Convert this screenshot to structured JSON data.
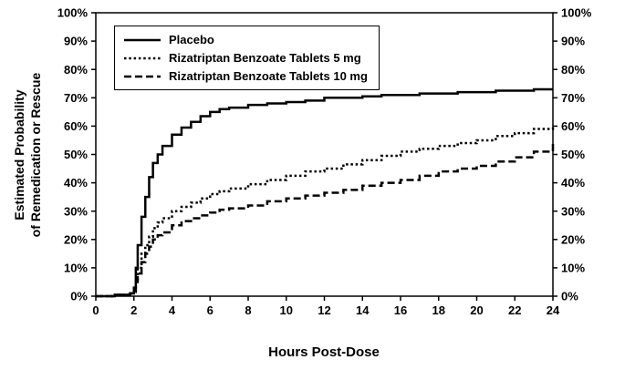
{
  "chart_data": {
    "type": "line",
    "title": "",
    "xlabel": "Hours Post-Dose",
    "ylabel": "Estimated Probability\nof Remedication or Rescue",
    "xlim": [
      0,
      24
    ],
    "ylim": [
      0,
      100
    ],
    "x_ticks": [
      0,
      2,
      4,
      6,
      8,
      10,
      12,
      14,
      16,
      18,
      20,
      22,
      24
    ],
    "y_ticks": [
      0,
      10,
      20,
      30,
      40,
      50,
      60,
      70,
      80,
      90,
      100
    ],
    "y_tick_suffix": "%",
    "y_axis_labels_both_sides": true,
    "grid": false,
    "legend_position": "top-left-inside",
    "interpolation": "step-after",
    "line_color": "#000000",
    "background_color": "#ffffff",
    "x": [
      0,
      1.0,
      1.8,
      2.0,
      2.1,
      2.2,
      2.4,
      2.6,
      2.8,
      3.0,
      3.25,
      3.5,
      4.0,
      4.5,
      5.0,
      5.5,
      6.0,
      6.5,
      7.0,
      8.0,
      9.0,
      10.0,
      11.0,
      12.0,
      13.0,
      14.0,
      15.0,
      16.0,
      17.0,
      18.0,
      19.0,
      20.0,
      21.0,
      22.0,
      23.0,
      24.0
    ],
    "series": [
      {
        "name": "Placebo",
        "style": "solid",
        "values": [
          0,
          0.5,
          1,
          3,
          10,
          18,
          28,
          35,
          42,
          47,
          50,
          53,
          57,
          59.5,
          61.5,
          63.5,
          65,
          66,
          66.5,
          67.5,
          68,
          68.5,
          69,
          70,
          70,
          70.5,
          71,
          71,
          71.5,
          71.5,
          72,
          72,
          72.5,
          72.5,
          73,
          73
        ]
      },
      {
        "name": "Rizatriptan Benzoate Tablets 5 mg",
        "style": "dotted",
        "values": [
          0,
          0.5,
          1,
          2,
          6,
          10,
          15,
          18,
          21,
          24,
          26,
          27.5,
          30,
          31.5,
          33,
          34.5,
          36,
          37,
          38,
          39.5,
          41,
          42.5,
          44,
          45,
          46.5,
          48,
          49.5,
          51,
          52,
          53,
          54,
          55,
          56.5,
          57.5,
          59,
          60.5
        ]
      },
      {
        "name": "Rizatriptan Benzoate Tablets 10 mg",
        "style": "dashed",
        "values": [
          0,
          0.5,
          1,
          1.5,
          5,
          8,
          12,
          15,
          17.5,
          20,
          21.5,
          22.5,
          25,
          26.5,
          27.5,
          28.5,
          29.5,
          30.5,
          31,
          32,
          33.5,
          34.5,
          35.5,
          36.5,
          37.5,
          39,
          40,
          41,
          42.5,
          44,
          45,
          46,
          47.5,
          49,
          51,
          54.5
        ]
      }
    ]
  }
}
